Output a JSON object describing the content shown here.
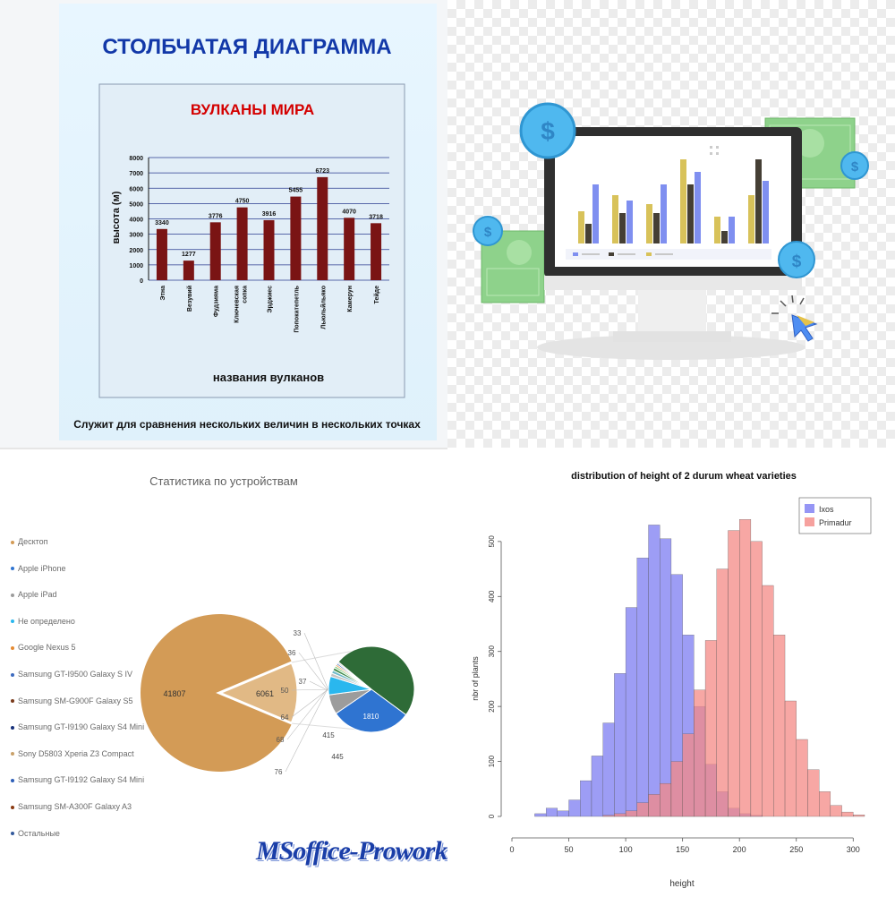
{
  "panels": {
    "volcano": {
      "title": "СТОЛБЧАТАЯ ДИАГРАММА",
      "caption": "Служит для сравнения нескольких величин в нескольких точках",
      "chart_data": {
        "type": "bar",
        "title": "ВУЛКАНЫ МИРА",
        "xlabel": "названия вулканов",
        "ylabel": "высота (м)",
        "categories": [
          "Этна",
          "Везувий",
          "Фудзияма",
          "Ключевская сопка",
          "Эрджиес",
          "Попокатепетль",
          "Льюльйльяко",
          "Камерун",
          "Тейде"
        ],
        "values": [
          3340,
          1277,
          3776,
          4750,
          3916,
          5455,
          6723,
          4070,
          3718
        ],
        "data_labels": [
          "3340",
          "1277",
          "3776",
          "4750",
          "3916",
          "5455",
          "6723",
          "4070",
          "3718"
        ],
        "yticks": [
          0,
          1000,
          2000,
          3000,
          4000,
          5000,
          6000,
          7000,
          8000
        ],
        "ylim": [
          0,
          8000
        ],
        "grid": true,
        "colors": {
          "bar": "#7a1414",
          "title": "#d40000",
          "heading": "#1238a8"
        }
      }
    },
    "monitor": {
      "colors": {
        "bar_blue": "#7f8ff0",
        "bar_yellow": "#d8c25a",
        "bar_dark": "#453f35",
        "coin": "#4fb8ef",
        "money": "#8ed28b",
        "cursor": "#4f8ef2"
      },
      "icons": [
        "dollar-coin-icon",
        "money-bill-icon",
        "cursor-click-icon",
        "monitor-icon"
      ]
    },
    "devices": {
      "chart_data": {
        "type": "pie",
        "title": "Статистика по устройствам",
        "legend": [
          "Десктоп",
          "Apple iPhone",
          "Apple iPad",
          "Не определено",
          "Google Nexus 5",
          "Samsung GT-I9500 Galaxy S IV",
          "Samsung SM-G900F Galaxy S5",
          "Samsung GT-I9190 Galaxy S4 Mini",
          "Sony D5803 Xperia Z3 Compact",
          "Samsung GT-I9192 Galaxy S4 Mini",
          "Samsung SM-A300F Galaxy A3",
          "Остальные"
        ],
        "legend_placement": "left",
        "colors": [
          "#d39b56",
          "#2f74d1",
          "#9c9c9c",
          "#2ab7ee",
          "#e58a32",
          "#3d6bbf",
          "#7a3b1c",
          "#17317a",
          "#c9a16a",
          "#2e5fb8",
          "#8a3a12",
          "#345a9c"
        ],
        "main_pie": [
          {
            "label": "41807",
            "value": 41807
          },
          {
            "label": "6061",
            "value": 6061
          }
        ],
        "secondary_pie": [
          {
            "label": "",
            "value": 2930,
            "color": "#2e6b37"
          },
          {
            "label": "1810",
            "value": 1810,
            "color": "#2f74d1"
          },
          {
            "label": "445",
            "value": 445,
            "color": "#9c9c9c"
          },
          {
            "label": "415",
            "value": 415,
            "color": "#2ab7ee"
          },
          {
            "label": "76",
            "value": 76,
            "color": "#c4c4c4"
          },
          {
            "label": "68",
            "value": 68,
            "color": "#6fb9c9"
          },
          {
            "label": "64",
            "value": 64,
            "color": "#3f8a4b"
          },
          {
            "label": "50",
            "value": 50,
            "color": "#8fcf8a"
          },
          {
            "label": "37",
            "value": 37,
            "color": "#e58a32"
          },
          {
            "label": "36",
            "value": 36,
            "color": "#3d6bbf"
          },
          {
            "label": "33",
            "value": 33,
            "color": "#d0d0d0"
          }
        ]
      },
      "watermark": "MSoffice-Prowork.com"
    },
    "wheat": {
      "chart_data": {
        "type": "bar",
        "title": "distribution of height of 2 durum wheat varieties",
        "xlabel": "height",
        "ylabel": "nbr of plants",
        "bin_edges": [
          20,
          30,
          40,
          50,
          60,
          70,
          80,
          90,
          100,
          110,
          120,
          130,
          140,
          150,
          160,
          170,
          180,
          190,
          200,
          210,
          220,
          230,
          240,
          250,
          260,
          270,
          280,
          290,
          300,
          310
        ],
        "xlim": [
          0,
          310
        ],
        "ylim": [
          0,
          560
        ],
        "xticks": [
          0,
          50,
          100,
          150,
          200,
          250,
          300
        ],
        "yticks": [
          0,
          100,
          200,
          300,
          400,
          500
        ],
        "legend_placement": "top-right",
        "series": [
          {
            "name": "Ixos",
            "color": "#7c7cf2",
            "values": [
              5,
              15,
              10,
              30,
              65,
              110,
              170,
              260,
              380,
              470,
              530,
              505,
              440,
              330,
              200,
              95,
              45,
              15,
              5,
              2,
              0,
              0,
              0,
              0,
              0,
              0,
              0,
              0,
              0
            ]
          },
          {
            "name": "Primadur",
            "color": "#f48a86",
            "values": [
              0,
              0,
              0,
              0,
              0,
              0,
              2,
              5,
              10,
              25,
              40,
              60,
              100,
              150,
              230,
              320,
              450,
              520,
              540,
              500,
              420,
              330,
              210,
              140,
              85,
              45,
              20,
              8,
              3
            ]
          }
        ]
      }
    }
  }
}
